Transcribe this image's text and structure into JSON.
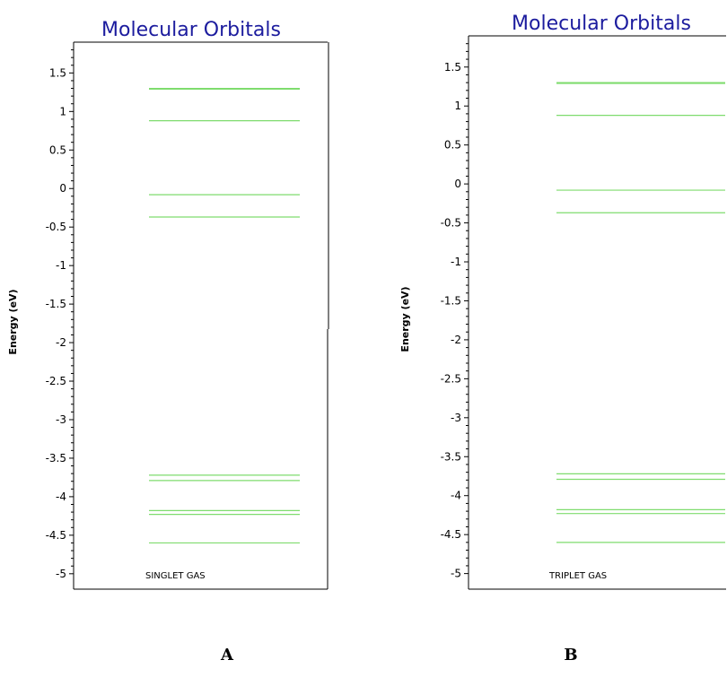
{
  "chart_data": [
    {
      "type": "energy-level",
      "title": "Molecular Orbitals",
      "ylabel": "Energy (eV)",
      "ylim": [
        -5.2,
        1.9
      ],
      "yticks": [
        1.5,
        1,
        0.5,
        0,
        -0.5,
        -1,
        -1.5,
        -2,
        -2.5,
        -3,
        -3.5,
        -4,
        -4.5,
        -5
      ],
      "ytick_labels": [
        "1.5",
        "1",
        "0.5",
        "0",
        "-0.5",
        "-1",
        "-1.5",
        "-2",
        "-2.5",
        "-3",
        "-3.5",
        "-4",
        "-4.5",
        "-5"
      ],
      "levels": [
        1.3,
        1.29,
        0.88,
        -0.08,
        -0.37,
        -3.72,
        -3.79,
        -4.18,
        -4.23,
        -4.6
      ],
      "line_color": "#7fdc6e",
      "annotation": "SINGLET GAS",
      "caption": "A"
    },
    {
      "type": "energy-level",
      "title": "Molecular Orbitals",
      "ylabel": "Energy (eV)",
      "ylim": [
        -5.2,
        1.9
      ],
      "yticks": [
        1.5,
        1,
        0.5,
        0,
        -0.5,
        -1,
        -1.5,
        -2,
        -2.5,
        -3,
        -3.5,
        -4,
        -4.5,
        -5
      ],
      "ytick_labels": [
        "1.5",
        "1",
        "0.5",
        "0",
        "-0.5",
        "-1",
        "-1.5",
        "-2",
        "-2.5",
        "-3",
        "-3.5",
        "-4",
        "-4.5",
        "-5"
      ],
      "levels": [
        1.3,
        1.29,
        0.88,
        -0.08,
        -0.37,
        -3.72,
        -3.79,
        -4.18,
        -4.23,
        -4.6
      ],
      "line_color": "#7fdc6e",
      "annotation": "TRIPLET GAS",
      "caption": "B"
    }
  ]
}
